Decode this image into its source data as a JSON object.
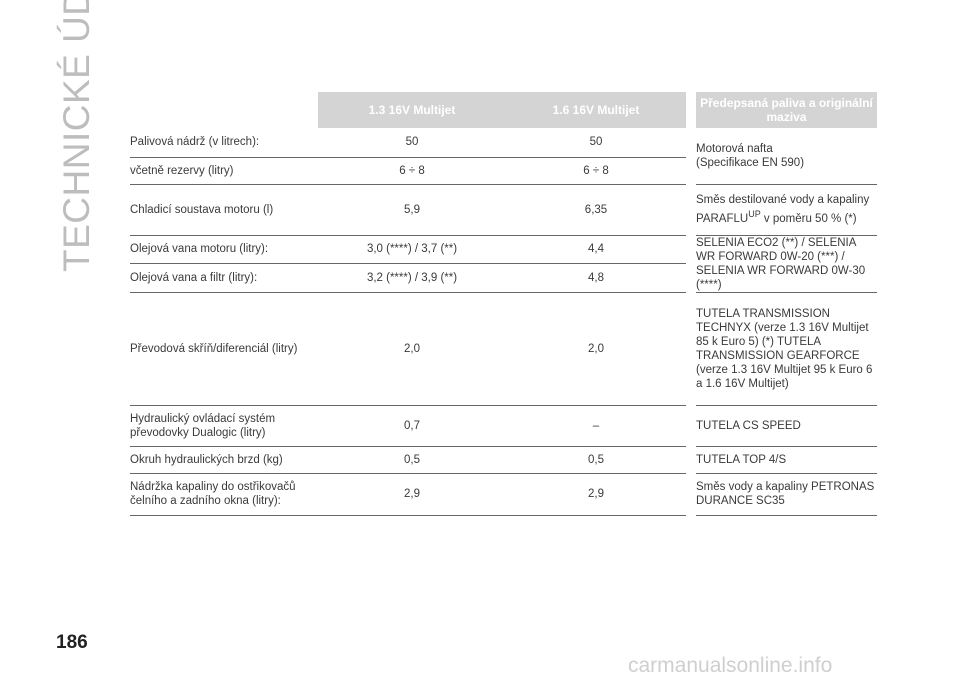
{
  "side_title": "TECHNICKÉ ÚDAJE",
  "page_number": "186",
  "watermark": "carmanualsonline.info",
  "table": {
    "headers": [
      "1.3 16V Multijet",
      "1.6 16V Multijet",
      "Předepsaná paliva a originální maziva"
    ],
    "rows": [
      {
        "label": "Palivová nádrž (v litrech):",
        "v1": "50",
        "v2": "50"
      },
      {
        "label": "včetně rezervy (litry)",
        "v1": "6 ÷ 8",
        "v2": "6 ÷ 8"
      },
      {
        "label": "Chladicí soustava motoru (l)",
        "v1": "5,9",
        "v2": "6,35"
      },
      {
        "label": "Olejová vana motoru (litry):",
        "v1": "3,0 (****) / 3,7 (**)",
        "v2": "4,4"
      },
      {
        "label": "Olejová vana a filtr (litry):",
        "v1": "3,2 (****) / 3,9 (**)",
        "v2": "4,8"
      },
      {
        "label": "Převodová skříň/diferenciál (litry)",
        "v1": "2,0",
        "v2": "2,0"
      },
      {
        "label": "Hydraulický ovládací systém převodovky Dualogic (litry)",
        "v1": "0,7",
        "v2": "–"
      },
      {
        "label": "Okruh hydraulických brzd (kg)",
        "v1": "0,5",
        "v2": "0,5"
      },
      {
        "label": "Nádržka kapaliny do ostřikovačů čelního a zadního okna (litry):",
        "v1": "2,9",
        "v2": "2,9"
      }
    ],
    "fluids": {
      "fuel_1": "Motorová nafta",
      "fuel_2": "(Specifikace EN 590)",
      "coolant_1": "Směs destilované vody a kapaliny",
      "coolant_2a": "PARAFLU",
      "coolant_sup": "UP",
      "coolant_2b": " v poměru 50 % (*)",
      "oil": "SELENIA ECO2 (**) / SELENIA WR FORWARD 0W-20 (***) / SELENIA WR FORWARD 0W-30 (****)",
      "gearbox": "TUTELA TRANSMISSION TECHNYX (verze 1.3 16V Multijet 85 k Euro 5) (*) TUTELA TRANSMISSION GEARFORCE (verze 1.3 16V Multijet 95 k Euro 6 a 1.6 16V Multijet)",
      "dualogic": "TUTELA CS SPEED",
      "brakes": "TUTELA TOP 4/S",
      "washer": "Směs vody a kapaliny PETRONAS DURANCE SC35"
    }
  }
}
